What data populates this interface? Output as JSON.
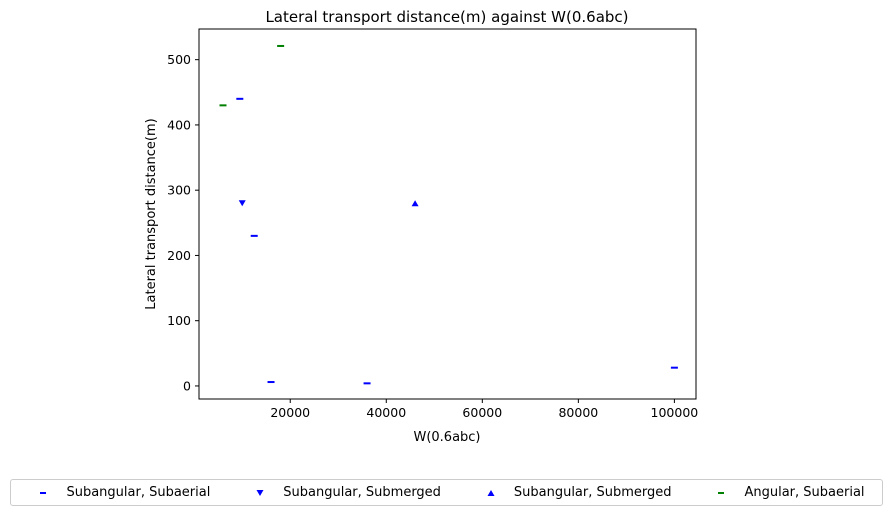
{
  "chart_data": {
    "type": "scatter",
    "title": "Lateral transport distance(m) against W(0.6abc)",
    "xlabel": "W(0.6abc)",
    "ylabel": "Lateral transport distance(m)",
    "xlim": [
      1000,
      104500
    ],
    "ylim": [
      -20,
      547
    ],
    "xticks": [
      20000,
      40000,
      60000,
      80000,
      100000
    ],
    "yticks": [
      0,
      100,
      200,
      300,
      400,
      500
    ],
    "legend_position": "bottom, below axes",
    "series": [
      {
        "name": "Subangular, Subaerial",
        "marker": "hline",
        "color": "#0000ff",
        "points": [
          {
            "x": 9500,
            "y": 440
          },
          {
            "x": 12500,
            "y": 230
          },
          {
            "x": 16000,
            "y": 6
          },
          {
            "x": 36000,
            "y": 4
          },
          {
            "x": 100000,
            "y": 28
          }
        ]
      },
      {
        "name": "Subangular, Submerged",
        "marker": "triangle-down",
        "color": "#0000ff",
        "points": [
          {
            "x": 10000,
            "y": 280
          }
        ]
      },
      {
        "name": "Subangular, Submerged",
        "marker": "triangle-up",
        "color": "#0000ff",
        "points": [
          {
            "x": 46000,
            "y": 280
          }
        ]
      },
      {
        "name": "Angular, Subaerial",
        "marker": "hline",
        "color": "#008000",
        "points": [
          {
            "x": 6000,
            "y": 430
          },
          {
            "x": 18000,
            "y": 521
          }
        ]
      }
    ]
  }
}
